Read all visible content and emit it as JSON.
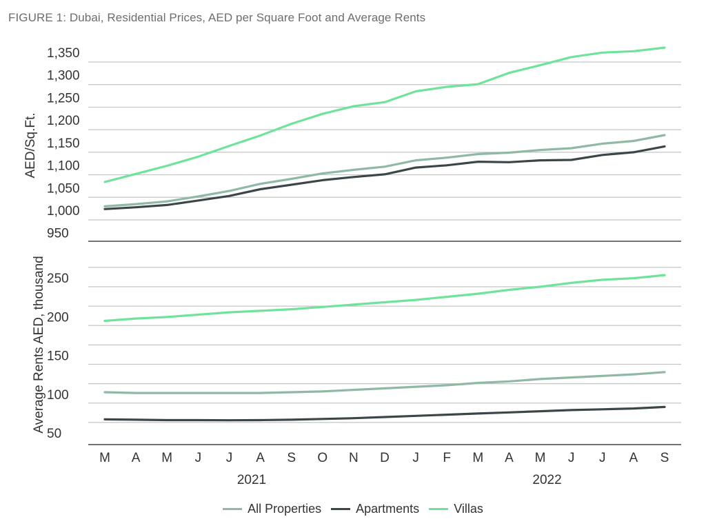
{
  "title": "FIGURE 1: Dubai, Residential Prices, AED per Square Foot and Average Rents",
  "colors": {
    "all_properties": "#8fb9a5",
    "apartments": "#3c4548",
    "villas": "#6fe39b"
  },
  "legend": [
    "All Properties",
    "Apartments",
    "Villas"
  ],
  "chart_data": [
    {
      "type": "line",
      "ylabel": "AED/Sq.Ft.",
      "ylim": [
        950,
        1375
      ],
      "yticks": [
        "1,350",
        "1,300",
        "1,250",
        "1,200",
        "1,150",
        "1,100",
        "1,050",
        "1,000",
        "950"
      ],
      "ytick_values": [
        1350,
        1300,
        1250,
        1200,
        1150,
        1100,
        1050,
        1000,
        950
      ],
      "grid": true,
      "series": [
        {
          "name": "All Properties",
          "values": [
            1030,
            1035,
            1041,
            1052,
            1064,
            1080,
            1091,
            1103,
            1111,
            1118,
            1132,
            1138,
            1146,
            1149,
            1155,
            1159,
            1169,
            1175,
            1188
          ]
        },
        {
          "name": "Apartments",
          "values": [
            1024,
            1028,
            1033,
            1043,
            1053,
            1068,
            1078,
            1088,
            1095,
            1101,
            1116,
            1121,
            1129,
            1128,
            1132,
            1133,
            1144,
            1150,
            1163
          ]
        },
        {
          "name": "Villas",
          "values": [
            1084,
            1102,
            1120,
            1140,
            1164,
            1187,
            1213,
            1235,
            1252,
            1261,
            1285,
            1295,
            1301,
            1326,
            1343,
            1361,
            1371,
            1374,
            1382
          ]
        }
      ]
    },
    {
      "type": "line",
      "ylabel": "Average Rents AED, thousand",
      "ylim": [
        40,
        287
      ],
      "yticks": [
        "250",
        "200",
        "150",
        "100",
        "50"
      ],
      "ytick_values": [
        250,
        200,
        150,
        100,
        50
      ],
      "grid": true,
      "series": [
        {
          "name": "All Properties",
          "values": [
            114,
            113,
            113,
            113,
            113,
            113,
            114,
            115,
            117,
            119,
            121,
            123,
            126,
            128,
            131,
            133,
            135,
            137,
            140
          ]
        },
        {
          "name": "Apartments",
          "values": [
            79,
            78.5,
            78,
            78,
            77.8,
            78,
            78.5,
            79.5,
            80.5,
            82,
            83.5,
            85,
            86.5,
            88,
            89.5,
            91,
            92,
            93,
            95
          ]
        },
        {
          "name": "Villas",
          "values": [
            206,
            209,
            211,
            214,
            217,
            219,
            221,
            224,
            227,
            230,
            233,
            237,
            241,
            246,
            250,
            255,
            259,
            261,
            265
          ]
        }
      ]
    }
  ],
  "x_axis": {
    "months": [
      "M",
      "A",
      "M",
      "J",
      "J",
      "A",
      "S",
      "O",
      "N",
      "D",
      "J",
      "F",
      "M",
      "A",
      "M",
      "J",
      "J",
      "A",
      "S"
    ],
    "years": [
      {
        "label": "2021",
        "center_index": 4.5
      },
      {
        "label": "2022",
        "center_index": 14
      }
    ]
  }
}
